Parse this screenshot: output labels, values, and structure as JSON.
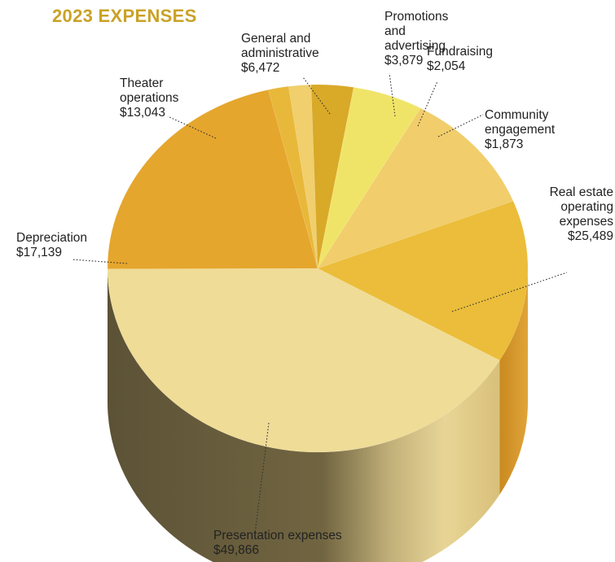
{
  "chart_data": {
    "type": "pie",
    "title": "2023 EXPENSES",
    "unit": "$",
    "slices": [
      {
        "label": "Presentation expenses",
        "value": 49866,
        "display": "$49,866",
        "color": "#efdc96"
      },
      {
        "label": "Real estate operating expenses",
        "value": 25489,
        "display": "$25,489",
        "color": "#e5a62d"
      },
      {
        "label": "Community engagement",
        "value": 1873,
        "display": "$1,873",
        "color": "#e8b83a"
      },
      {
        "label": "Fundraising",
        "value": 2054,
        "display": "$2,054",
        "color": "#f0cf6c"
      },
      {
        "label": "Promotions and advertising",
        "value": 3879,
        "display": "$3,879",
        "color": "#d9a928"
      },
      {
        "label": "General and administrative",
        "value": 6472,
        "display": "$6,472",
        "color": "#f0e468"
      },
      {
        "label": "Theater operations",
        "value": 13043,
        "display": "$13,043",
        "color": "#f1cd6b"
      },
      {
        "label": "Depreciation",
        "value": 17139,
        "display": "$17,139",
        "color": "#ebbd3a"
      }
    ],
    "legend": "none",
    "labels": "outside-with-leader-lines",
    "style": "3d-pie"
  },
  "labels": [
    {
      "lines": [
        "Presentation expenses",
        "$49,866"
      ]
    },
    {
      "lines": [
        "Real estate",
        "operating",
        "expenses",
        "$25,489"
      ]
    },
    {
      "lines": [
        "Community",
        "engagement",
        "$1,873"
      ]
    },
    {
      "lines": [
        "Fundraising",
        "$2,054"
      ]
    },
    {
      "lines": [
        "Promotions",
        "and",
        "advertising",
        "$3,879"
      ]
    },
    {
      "lines": [
        "General and",
        "administrative",
        "$6,472"
      ]
    },
    {
      "lines": [
        "Theater",
        "operations",
        "$13,043"
      ]
    },
    {
      "lines": [
        "Depreciation",
        "$17,139"
      ]
    }
  ]
}
